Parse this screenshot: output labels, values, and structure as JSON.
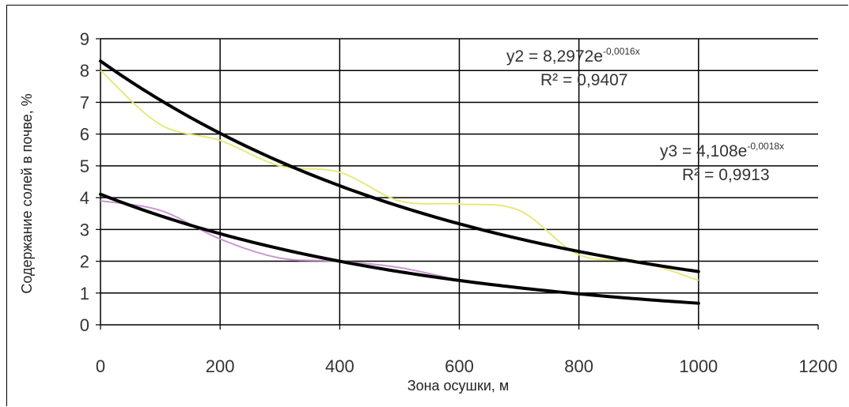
{
  "chart_data": {
    "type": "scatter",
    "title": "",
    "xlabel": "Зона осушки, м",
    "ylabel": "Содержание солей в почве, %",
    "xlim": [
      0,
      1200
    ],
    "ylim": [
      0,
      9
    ],
    "x_ticks": [
      "0",
      "200",
      "400",
      "600",
      "800",
      "1000",
      "1200"
    ],
    "y_ticks": [
      "0",
      "1",
      "2",
      "3",
      "4",
      "5",
      "6",
      "7",
      "8",
      "9"
    ],
    "grid": true,
    "legend": "none",
    "colors": {
      "series_y2": "#e8e87a",
      "series_y3": "#c89ad0",
      "trend": "#000000"
    },
    "series": [
      {
        "color": "#e8e87a",
        "x": [
          0,
          100,
          200,
          300,
          400,
          500,
          600,
          700,
          800,
          900,
          1000
        ],
        "y": [
          8.0,
          6.3,
          5.8,
          5.0,
          4.8,
          3.9,
          3.8,
          3.6,
          2.2,
          2.0,
          1.4
        ]
      },
      {
        "color": "#c89ad0",
        "x": [
          0,
          100,
          200,
          300,
          400,
          500,
          600
        ],
        "y": [
          3.9,
          3.6,
          2.7,
          2.1,
          2.0,
          1.8,
          1.4
        ]
      }
    ],
    "trendlines": [
      {
        "a": 8.2972,
        "b": -0.0016,
        "x_range": [
          0,
          1000
        ]
      },
      {
        "a": 4.108,
        "b": -0.0018,
        "x_range": [
          0,
          1000
        ]
      }
    ],
    "annotations": [
      {
        "eq_base": "y2 = 8,2972e",
        "eq_exp": "-0,0016x",
        "r2_label": "R²",
        "r2_value": "= 0,9407"
      },
      {
        "eq_base": "y3 = 4,108e",
        "eq_exp": "-0,0018x",
        "r2_label": "R²",
        "r2_value": "= 0,9913"
      }
    ]
  }
}
